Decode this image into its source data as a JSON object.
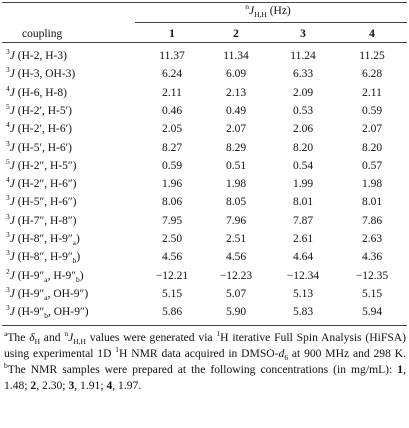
{
  "table": {
    "span_header": [
      {
        "sup": "n"
      },
      {
        "i": "J"
      },
      {
        "sub": "H,H"
      },
      {
        "t": " (Hz)"
      }
    ],
    "columns": [
      "coupling",
      "1",
      "2",
      "3",
      "4"
    ],
    "rows": [
      {
        "label": [
          {
            "sup": "3"
          },
          {
            "i": "J"
          },
          {
            "t": " (H-2, H-3)"
          }
        ],
        "values": [
          "11.37",
          "11.34",
          "11.24",
          "11.25"
        ]
      },
      {
        "label": [
          {
            "sup": "3"
          },
          {
            "i": "J"
          },
          {
            "t": " (H-3, OH-3)"
          }
        ],
        "values": [
          "6.24",
          "6.09",
          "6.33",
          "6.28"
        ]
      },
      {
        "label": [
          {
            "sup": "4"
          },
          {
            "i": "J"
          },
          {
            "t": " (H-6, H-8)"
          }
        ],
        "values": [
          "2.11",
          "2.13",
          "2.09",
          "2.11"
        ]
      },
      {
        "label": [
          {
            "sup": "5"
          },
          {
            "i": "J"
          },
          {
            "t": " (H-2′, H-5′)"
          }
        ],
        "values": [
          "0.46",
          "0.49",
          "0.53",
          "0.59"
        ]
      },
      {
        "label": [
          {
            "sup": "4"
          },
          {
            "i": "J"
          },
          {
            "t": " (H-2′, H-6′)"
          }
        ],
        "values": [
          "2.05",
          "2.07",
          "2.06",
          "2.07"
        ]
      },
      {
        "label": [
          {
            "sup": "3"
          },
          {
            "i": "J"
          },
          {
            "t": " (H-5′, H-6′)"
          }
        ],
        "values": [
          "8.27",
          "8.29",
          "8.20",
          "8.20"
        ]
      },
      {
        "label": [
          {
            "sup": "5"
          },
          {
            "i": "J"
          },
          {
            "t": " (H-2″, H-5″)"
          }
        ],
        "values": [
          "0.59",
          "0.51",
          "0.54",
          "0.57"
        ]
      },
      {
        "label": [
          {
            "sup": "4"
          },
          {
            "i": "J"
          },
          {
            "t": " (H-2″, H-6″)"
          }
        ],
        "values": [
          "1.96",
          "1.98",
          "1.99",
          "1.98"
        ]
      },
      {
        "label": [
          {
            "sup": "3"
          },
          {
            "i": "J"
          },
          {
            "t": " (H-5″, H-6″)"
          }
        ],
        "values": [
          "8.06",
          "8.05",
          "8.01",
          "8.01"
        ]
      },
      {
        "label": [
          {
            "sup": "3"
          },
          {
            "i": "J"
          },
          {
            "t": " (H-7″, H-8″)"
          }
        ],
        "values": [
          "7.95",
          "7.96",
          "7.87",
          "7.86"
        ]
      },
      {
        "label": [
          {
            "sup": "3"
          },
          {
            "i": "J"
          },
          {
            "t": " (H-8″, H-9″"
          },
          {
            "sub": "a"
          },
          {
            "t": ")"
          }
        ],
        "values": [
          "2.50",
          "2.51",
          "2.61",
          "2.63"
        ]
      },
      {
        "label": [
          {
            "sup": "3"
          },
          {
            "i": "J"
          },
          {
            "t": " (H-8″, H-9″"
          },
          {
            "sub": "b"
          },
          {
            "t": ")"
          }
        ],
        "values": [
          "4.56",
          "4.56",
          "4.64",
          "4.36"
        ]
      },
      {
        "label": [
          {
            "sup": "2"
          },
          {
            "i": "J"
          },
          {
            "t": " (H-9″"
          },
          {
            "sub": "a"
          },
          {
            "t": ", H-9″"
          },
          {
            "sub": "b"
          },
          {
            "t": ")"
          }
        ],
        "values": [
          "−12.21",
          "−12.23",
          "−12.34",
          "−12.35"
        ]
      },
      {
        "label": [
          {
            "sup": "3"
          },
          {
            "i": "J"
          },
          {
            "t": " (H-9″"
          },
          {
            "sub": "a"
          },
          {
            "t": ", OH-9″)"
          }
        ],
        "values": [
          "5.15",
          "5.07",
          "5.13",
          "5.15"
        ]
      },
      {
        "label": [
          {
            "sup": "3"
          },
          {
            "i": "J"
          },
          {
            "t": " (H-9″"
          },
          {
            "sub": "b"
          },
          {
            "t": ", OH-9″)"
          }
        ],
        "values": [
          "5.86",
          "5.90",
          "5.83",
          "5.94"
        ]
      }
    ],
    "footnote": [
      {
        "sup": "a"
      },
      {
        "t": "The "
      },
      {
        "i": "δ"
      },
      {
        "sub": "H"
      },
      {
        "t": " and "
      },
      {
        "sup": "n"
      },
      {
        "i": "J"
      },
      {
        "sub": "H,H"
      },
      {
        "t": " values were generated via "
      },
      {
        "sup": "1"
      },
      {
        "t": "H iterative Full Spin Analysis (HiFSA) using experimental 1D "
      },
      {
        "sup": "1"
      },
      {
        "t": "H NMR data acquired in DMSO-"
      },
      {
        "i": "d"
      },
      {
        "sub": "6"
      },
      {
        "t": " at 900 MHz and 298 K. "
      },
      {
        "sup": "b"
      },
      {
        "t": "The NMR samples were prepared at the following concentrations (in mg/mL): "
      },
      {
        "b": "1"
      },
      {
        "t": ", 1.48; "
      },
      {
        "b": "2"
      },
      {
        "t": ", 2.30; "
      },
      {
        "b": "3"
      },
      {
        "t": ", 1.91; "
      },
      {
        "b": "4"
      },
      {
        "t": ", 1.97."
      }
    ]
  }
}
